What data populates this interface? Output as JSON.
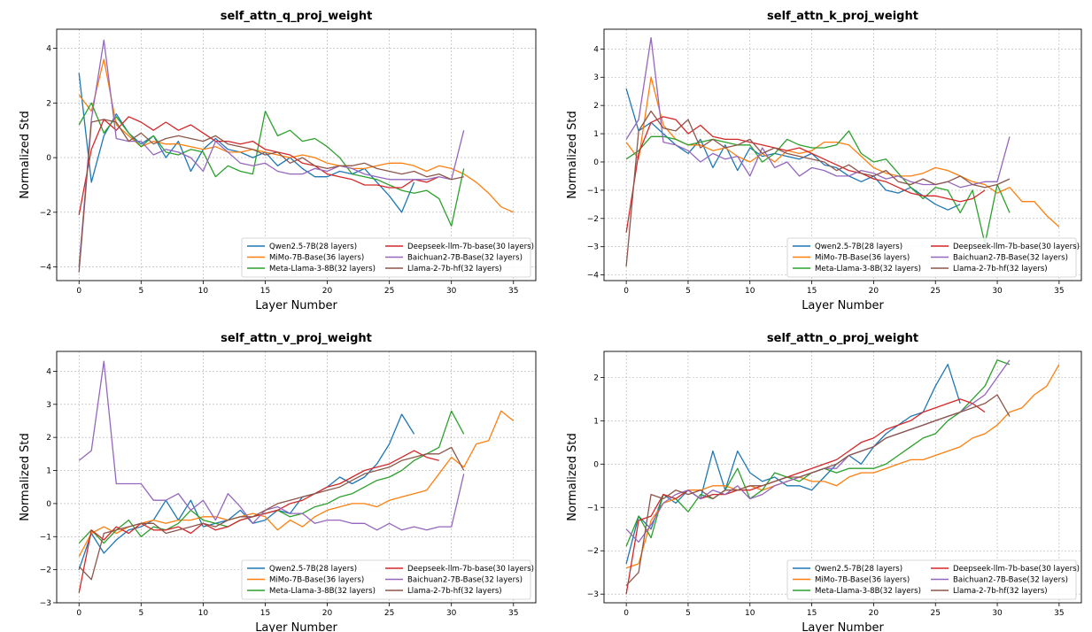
{
  "colors": {
    "Qwen2.5-7B(28 layers)": "#1f77b4",
    "MiMo-7B-Base(36 layers)": "#ff7f0e",
    "Meta-Llama-3-8B(32 layers)": "#2ca02c",
    "Deepseek-llm-7b-base(30 layers)": "#d62728",
    "Baichuan2-7B-Base(32 layers)": "#9467bd",
    "Llama-2-7b-hf(32 layers)": "#8c564b"
  },
  "chart_data": [
    {
      "type": "line",
      "title": "self_attn_q_proj_weight",
      "xlabel": "Layer Number",
      "ylabel": "Normalized Std",
      "xlim": [
        -1.8,
        36.8
      ],
      "ylim": [
        -4.5,
        4.7
      ],
      "xticks": [
        0,
        5,
        10,
        15,
        20,
        25,
        30,
        35
      ],
      "yticks": [
        -4,
        -2,
        0,
        2,
        4
      ],
      "grid": true,
      "legend": "lower-right",
      "series": [
        {
          "name": "Qwen2.5-7B(28 layers)",
          "values": [
            3.1,
            -0.9,
            0.8,
            1.6,
            0.9,
            0.5,
            0.8,
            0.0,
            0.6,
            -0.5,
            0.3,
            0.7,
            0.3,
            0.2,
            0.0,
            0.2,
            -0.3,
            0.0,
            -0.4,
            -0.7,
            -0.7,
            -0.5,
            -0.6,
            -0.4,
            -0.9,
            -1.4,
            -2.0,
            -0.9
          ]
        },
        {
          "name": "MiMo-7B-Base(36 layers)",
          "values": [
            2.3,
            1.7,
            3.6,
            1.2,
            0.8,
            0.4,
            0.6,
            0.5,
            0.5,
            0.4,
            0.3,
            0.4,
            0.2,
            0.2,
            0.3,
            0.2,
            0.1,
            0.0,
            0.1,
            0.0,
            -0.2,
            -0.3,
            -0.4,
            -0.4,
            -0.3,
            -0.2,
            -0.2,
            -0.3,
            -0.5,
            -0.3,
            -0.4,
            -0.6,
            -0.9,
            -1.3,
            -1.8,
            -2.0
          ]
        },
        {
          "name": "Meta-Llama-3-8B(32 layers)",
          "values": [
            1.2,
            2.0,
            0.9,
            1.5,
            0.9,
            0.4,
            0.8,
            0.2,
            0.1,
            0.3,
            0.2,
            -0.7,
            -0.3,
            -0.5,
            -0.6,
            1.7,
            0.8,
            1.0,
            0.6,
            0.7,
            0.4,
            0.0,
            -0.6,
            -0.7,
            -0.8,
            -1.0,
            -1.2,
            -1.3,
            -1.2,
            -1.5,
            -2.5,
            -0.4
          ]
        },
        {
          "name": "Deepseek-llm-7b-base(30 layers)",
          "values": [
            -2.1,
            0.3,
            1.4,
            1.0,
            1.5,
            1.3,
            1.0,
            1.3,
            1.0,
            1.2,
            0.9,
            0.6,
            0.6,
            0.5,
            0.6,
            0.3,
            0.2,
            0.1,
            -0.2,
            -0.3,
            -0.6,
            -0.7,
            -0.8,
            -1.0,
            -1.0,
            -1.1,
            -1.1,
            -0.8,
            -0.9,
            -0.7
          ]
        },
        {
          "name": "Baichuan2-7B-Base(32 layers)",
          "values": [
            -4.0,
            1.4,
            4.3,
            0.7,
            0.6,
            0.6,
            0.1,
            0.3,
            0.2,
            0.0,
            -0.5,
            0.6,
            0.2,
            -0.2,
            -0.3,
            -0.2,
            -0.5,
            -0.6,
            -0.6,
            -0.4,
            -0.5,
            -0.3,
            -0.4,
            -0.6,
            -0.7,
            -0.8,
            -0.8,
            -0.8,
            -0.8,
            -0.7,
            -0.8,
            1.0
          ]
        },
        {
          "name": "Llama-2-7b-hf(32 layers)",
          "values": [
            -4.2,
            1.3,
            1.4,
            1.3,
            0.6,
            0.9,
            0.5,
            0.7,
            0.8,
            0.7,
            0.6,
            0.8,
            0.5,
            0.4,
            0.3,
            0.1,
            0.2,
            -0.2,
            0.0,
            -0.3,
            -0.4,
            -0.3,
            -0.3,
            -0.2,
            -0.4,
            -0.5,
            -0.6,
            -0.5,
            -0.7,
            -0.6,
            -0.8,
            -0.7
          ]
        }
      ]
    },
    {
      "type": "line",
      "title": "self_attn_k_proj_weight",
      "xlabel": "Layer Number",
      "ylabel": "Normalized Std",
      "xlim": [
        -1.8,
        36.8
      ],
      "ylim": [
        -4.2,
        4.7
      ],
      "xticks": [
        0,
        5,
        10,
        15,
        20,
        25,
        30,
        35
      ],
      "yticks": [
        -4,
        -3,
        -2,
        -1,
        0,
        1,
        2,
        3,
        4
      ],
      "grid": true,
      "legend": "lower-right",
      "series": [
        {
          "name": "Qwen2.5-7B(28 layers)",
          "values": [
            2.6,
            1.1,
            1.4,
            1.0,
            0.6,
            0.3,
            0.8,
            -0.2,
            0.6,
            -0.3,
            0.5,
            0.2,
            0.3,
            0.2,
            0.1,
            0.3,
            -0.1,
            -0.2,
            -0.5,
            -0.7,
            -0.5,
            -1.0,
            -1.1,
            -0.9,
            -1.2,
            -1.5,
            -1.7,
            -1.5
          ]
        },
        {
          "name": "MiMo-7B-Base(36 layers)",
          "values": [
            0.7,
            0.1,
            3.0,
            1.3,
            0.8,
            0.6,
            0.6,
            0.4,
            0.5,
            0.2,
            0.0,
            0.3,
            0.0,
            0.4,
            0.3,
            0.4,
            0.7,
            0.7,
            0.6,
            0.2,
            -0.2,
            -0.4,
            -0.5,
            -0.5,
            -0.4,
            -0.2,
            -0.3,
            -0.5,
            -0.7,
            -0.8,
            -1.1,
            -0.9,
            -1.4,
            -1.4,
            -1.9,
            -2.3
          ]
        },
        {
          "name": "Meta-Llama-3-8B(32 layers)",
          "values": [
            0.1,
            0.4,
            0.9,
            0.9,
            0.8,
            0.6,
            0.7,
            0.8,
            0.7,
            0.6,
            0.6,
            0.0,
            0.3,
            0.8,
            0.6,
            0.5,
            0.5,
            0.6,
            1.1,
            0.3,
            0.0,
            0.1,
            -0.4,
            -0.9,
            -1.3,
            -0.9,
            -1.0,
            -1.8,
            -1.0,
            -2.9,
            -0.8,
            -1.8
          ]
        },
        {
          "name": "Deepseek-llm-7b-base(30 layers)",
          "values": [
            -2.5,
            0.3,
            1.4,
            1.6,
            1.5,
            1.0,
            1.3,
            0.9,
            0.8,
            0.8,
            0.7,
            0.6,
            0.5,
            0.4,
            0.5,
            0.3,
            0.1,
            -0.1,
            -0.3,
            -0.4,
            -0.6,
            -0.7,
            -0.9,
            -1.1,
            -1.2,
            -1.2,
            -1.3,
            -1.4,
            -1.3,
            -1.0
          ]
        },
        {
          "name": "Baichuan2-7B-Base(32 layers)",
          "values": [
            0.8,
            1.5,
            4.4,
            0.7,
            0.6,
            0.4,
            0.0,
            0.3,
            0.1,
            0.2,
            -0.5,
            0.5,
            -0.2,
            0.0,
            -0.5,
            -0.2,
            -0.3,
            -0.5,
            -0.5,
            -0.3,
            -0.4,
            -0.6,
            -0.5,
            -0.7,
            -0.8,
            -0.8,
            -0.7,
            -0.9,
            -0.8,
            -0.7,
            -0.7,
            0.9
          ]
        },
        {
          "name": "Llama-2-7b-hf(32 layers)",
          "values": [
            -3.7,
            1.1,
            1.8,
            1.2,
            1.1,
            1.5,
            0.5,
            0.8,
            0.5,
            0.6,
            0.8,
            0.3,
            0.5,
            0.3,
            0.2,
            0.1,
            0.0,
            -0.3,
            -0.1,
            -0.4,
            -0.5,
            -0.3,
            -0.7,
            -0.8,
            -0.6,
            -0.8,
            -0.7,
            -0.5,
            -0.8,
            -0.9,
            -0.8,
            -0.6
          ]
        }
      ]
    },
    {
      "type": "line",
      "title": "self_attn_v_proj_weight",
      "xlabel": "Layer Number",
      "ylabel": "Normalized Std",
      "xlim": [
        -1.8,
        36.8
      ],
      "ylim": [
        -3.0,
        4.6
      ],
      "xticks": [
        0,
        5,
        10,
        15,
        20,
        25,
        30,
        35
      ],
      "yticks": [
        -3,
        -2,
        -1,
        0,
        1,
        2,
        3,
        4
      ],
      "grid": true,
      "legend": "lower-right",
      "series": [
        {
          "name": "Qwen2.5-7B(28 layers)",
          "values": [
            -2.0,
            -0.9,
            -1.5,
            -1.1,
            -0.8,
            -0.7,
            -0.5,
            0.1,
            -0.5,
            0.1,
            -0.7,
            -0.6,
            -0.5,
            -0.2,
            -0.6,
            -0.5,
            -0.2,
            -0.3,
            0.2,
            0.3,
            0.5,
            0.8,
            0.6,
            0.8,
            1.2,
            1.8,
            2.7,
            2.1
          ]
        },
        {
          "name": "MiMo-7B-Base(36 layers)",
          "values": [
            -1.6,
            -0.9,
            -0.7,
            -0.9,
            -0.7,
            -0.6,
            -0.5,
            -0.6,
            -0.5,
            -0.5,
            -0.4,
            -0.4,
            -0.5,
            -0.4,
            -0.3,
            -0.4,
            -0.8,
            -0.5,
            -0.7,
            -0.4,
            -0.2,
            -0.1,
            0.0,
            0.0,
            -0.1,
            0.1,
            0.2,
            0.3,
            0.4,
            0.9,
            1.4,
            1.1,
            1.8,
            1.9,
            2.8,
            2.5
          ]
        },
        {
          "name": "Meta-Llama-3-8B(32 layers)",
          "values": [
            -1.2,
            -0.8,
            -1.2,
            -0.8,
            -0.5,
            -1.0,
            -0.7,
            -0.8,
            -0.6,
            -0.2,
            -0.5,
            -0.6,
            -0.7,
            -0.5,
            -0.4,
            -0.3,
            -0.2,
            -0.4,
            -0.3,
            -0.1,
            0.0,
            0.2,
            0.3,
            0.5,
            0.7,
            0.8,
            1.0,
            1.3,
            1.5,
            1.7,
            2.8,
            2.1
          ]
        },
        {
          "name": "Deepseek-llm-7b-base(30 layers)",
          "values": [
            -2.7,
            -0.8,
            -1.1,
            -0.7,
            -0.9,
            -0.6,
            -0.8,
            -0.8,
            -0.7,
            -0.9,
            -0.6,
            -0.8,
            -0.7,
            -0.5,
            -0.4,
            -0.3,
            -0.2,
            0.0,
            0.1,
            0.3,
            0.5,
            0.6,
            0.8,
            1.0,
            1.1,
            1.2,
            1.4,
            1.6,
            1.4,
            1.3
          ]
        },
        {
          "name": "Baichuan2-7B-Base(32 layers)",
          "values": [
            1.3,
            1.6,
            4.3,
            0.6,
            0.6,
            0.6,
            0.1,
            0.1,
            0.3,
            -0.2,
            0.1,
            -0.5,
            0.3,
            -0.1,
            -0.6,
            -0.2,
            -0.1,
            -0.3,
            -0.3,
            -0.6,
            -0.5,
            -0.5,
            -0.6,
            -0.6,
            -0.8,
            -0.6,
            -0.8,
            -0.7,
            -0.8,
            -0.7,
            -0.7,
            0.9
          ]
        },
        {
          "name": "Llama-2-7b-hf(32 layers)",
          "values": [
            -1.9,
            -2.3,
            -0.9,
            -0.8,
            -0.7,
            -0.6,
            -0.6,
            -0.9,
            -0.8,
            -0.7,
            -0.6,
            -0.7,
            -0.5,
            -0.4,
            -0.4,
            -0.2,
            0.0,
            0.1,
            0.2,
            0.3,
            0.4,
            0.5,
            0.7,
            0.9,
            1.0,
            1.1,
            1.3,
            1.4,
            1.5,
            1.5,
            1.7,
            1.0
          ]
        }
      ]
    },
    {
      "type": "line",
      "title": "self_attn_o_proj_weight",
      "xlabel": "Layer Number",
      "ylabel": "Normalized Std",
      "xlim": [
        -1.8,
        36.8
      ],
      "ylim": [
        -3.2,
        2.6
      ],
      "xticks": [
        0,
        5,
        10,
        15,
        20,
        25,
        30,
        35
      ],
      "yticks": [
        -3,
        -2,
        -1,
        0,
        1,
        2
      ],
      "grid": true,
      "legend": "lower-right",
      "series": [
        {
          "name": "Qwen2.5-7B(28 layers)",
          "values": [
            -2.3,
            -1.2,
            -1.5,
            -0.7,
            -0.9,
            -0.6,
            -0.8,
            0.3,
            -0.6,
            0.3,
            -0.2,
            -0.4,
            -0.3,
            -0.5,
            -0.5,
            -0.6,
            -0.3,
            0.0,
            0.2,
            0.0,
            0.4,
            0.7,
            0.9,
            1.1,
            1.2,
            1.8,
            2.3,
            1.4
          ]
        },
        {
          "name": "MiMo-7B-Base(36 layers)",
          "values": [
            -2.4,
            -2.3,
            -1.3,
            -0.9,
            -0.8,
            -0.6,
            -0.6,
            -0.5,
            -0.5,
            -0.6,
            -0.5,
            -0.6,
            -0.5,
            -0.4,
            -0.3,
            -0.4,
            -0.4,
            -0.5,
            -0.3,
            -0.2,
            -0.2,
            -0.1,
            0.0,
            0.1,
            0.1,
            0.2,
            0.3,
            0.4,
            0.6,
            0.7,
            0.9,
            1.2,
            1.3,
            1.6,
            1.8,
            2.3
          ]
        },
        {
          "name": "Meta-Llama-3-8B(32 layers)",
          "values": [
            -1.9,
            -1.2,
            -1.7,
            -0.7,
            -0.8,
            -1.1,
            -0.7,
            -0.8,
            -0.6,
            -0.1,
            -0.8,
            -0.6,
            -0.2,
            -0.3,
            -0.4,
            -0.2,
            -0.1,
            -0.2,
            -0.1,
            -0.1,
            -0.1,
            0.0,
            0.2,
            0.4,
            0.6,
            0.7,
            1.0,
            1.2,
            1.5,
            1.8,
            2.4,
            2.3
          ]
        },
        {
          "name": "Deepseek-llm-7b-base(30 layers)",
          "values": [
            -3.0,
            -1.3,
            -1.2,
            -0.7,
            -0.8,
            -0.6,
            -0.8,
            -0.7,
            -0.7,
            -0.6,
            -0.6,
            -0.5,
            -0.4,
            -0.3,
            -0.2,
            -0.1,
            0.0,
            0.1,
            0.3,
            0.5,
            0.6,
            0.8,
            0.9,
            1.0,
            1.2,
            1.3,
            1.4,
            1.5,
            1.4,
            1.2
          ]
        },
        {
          "name": "Baichuan2-7B-Base(32 layers)",
          "values": [
            -1.5,
            -1.8,
            -1.4,
            -0.9,
            -0.7,
            -0.6,
            -0.8,
            -0.6,
            -0.7,
            -0.5,
            -0.8,
            -0.7,
            -0.5,
            -0.4,
            -0.3,
            -0.2,
            -0.1,
            -0.1,
            0.2,
            0.3,
            0.4,
            0.6,
            0.7,
            0.8,
            0.9,
            1.0,
            1.1,
            1.2,
            1.4,
            1.6,
            2.0,
            2.4
          ]
        },
        {
          "name": "Llama-2-7b-hf(32 layers)",
          "values": [
            -2.8,
            -2.5,
            -0.7,
            -0.8,
            -0.6,
            -0.7,
            -0.6,
            -0.8,
            -0.6,
            -0.6,
            -0.5,
            -0.5,
            -0.4,
            -0.3,
            -0.3,
            -0.2,
            -0.1,
            0.0,
            0.2,
            0.3,
            0.4,
            0.6,
            0.7,
            0.8,
            0.9,
            1.0,
            1.1,
            1.2,
            1.3,
            1.4,
            1.6,
            1.1
          ]
        }
      ]
    }
  ]
}
